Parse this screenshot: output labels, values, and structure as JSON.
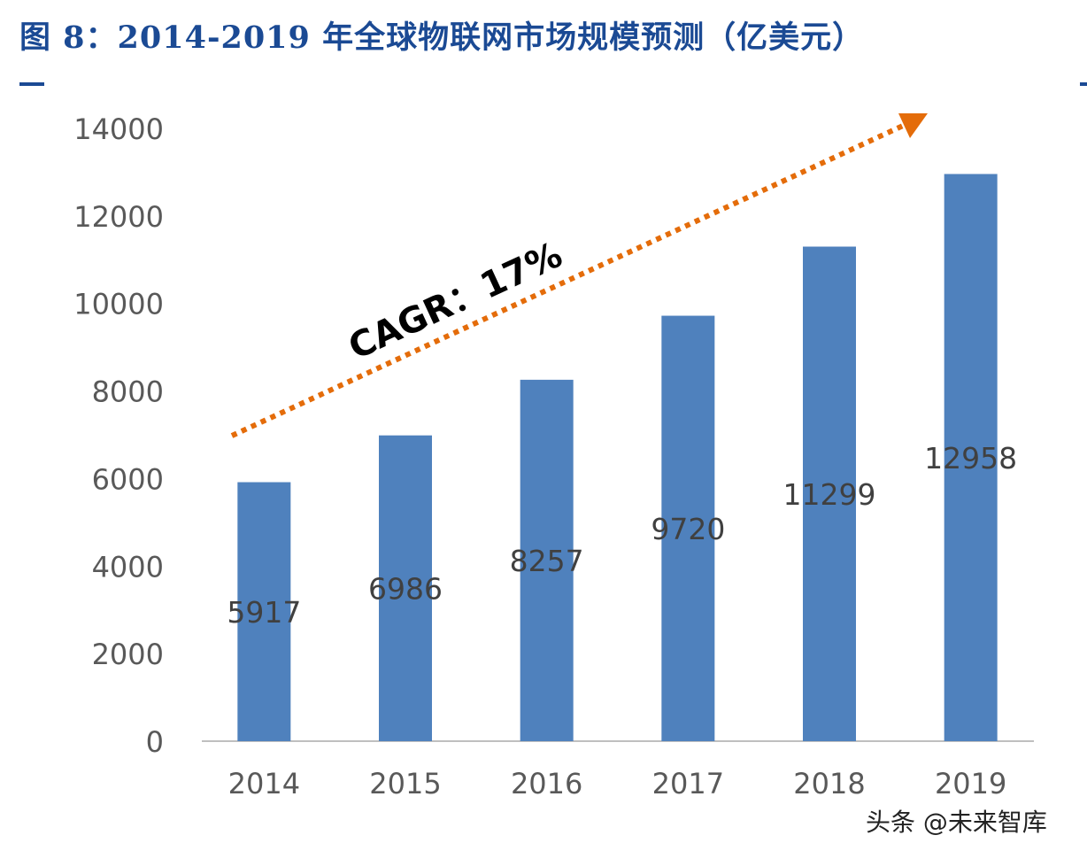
{
  "title": "图 8：2014-2019 年全球物联网市场规模预测（亿美元）",
  "watermark": "头条 @未来智库",
  "chart_data": {
    "type": "bar",
    "title": "图 8：2014-2019 年全球物联网市场规模预测（亿美元）",
    "categories": [
      "2014",
      "2015",
      "2016",
      "2017",
      "2018",
      "2019"
    ],
    "values": [
      5917,
      6986,
      8257,
      9720,
      11299,
      12958
    ],
    "ylim": [
      0,
      14000
    ],
    "yticks": [
      0,
      2000,
      4000,
      6000,
      8000,
      10000,
      12000,
      14000
    ],
    "grid": false,
    "legend": "none",
    "annotation": "CAGR：17%",
    "colors": {
      "bar": "#4f81bd",
      "arrow": "#e46c0a",
      "title": "#1b4a94",
      "labels": "#404040"
    }
  }
}
